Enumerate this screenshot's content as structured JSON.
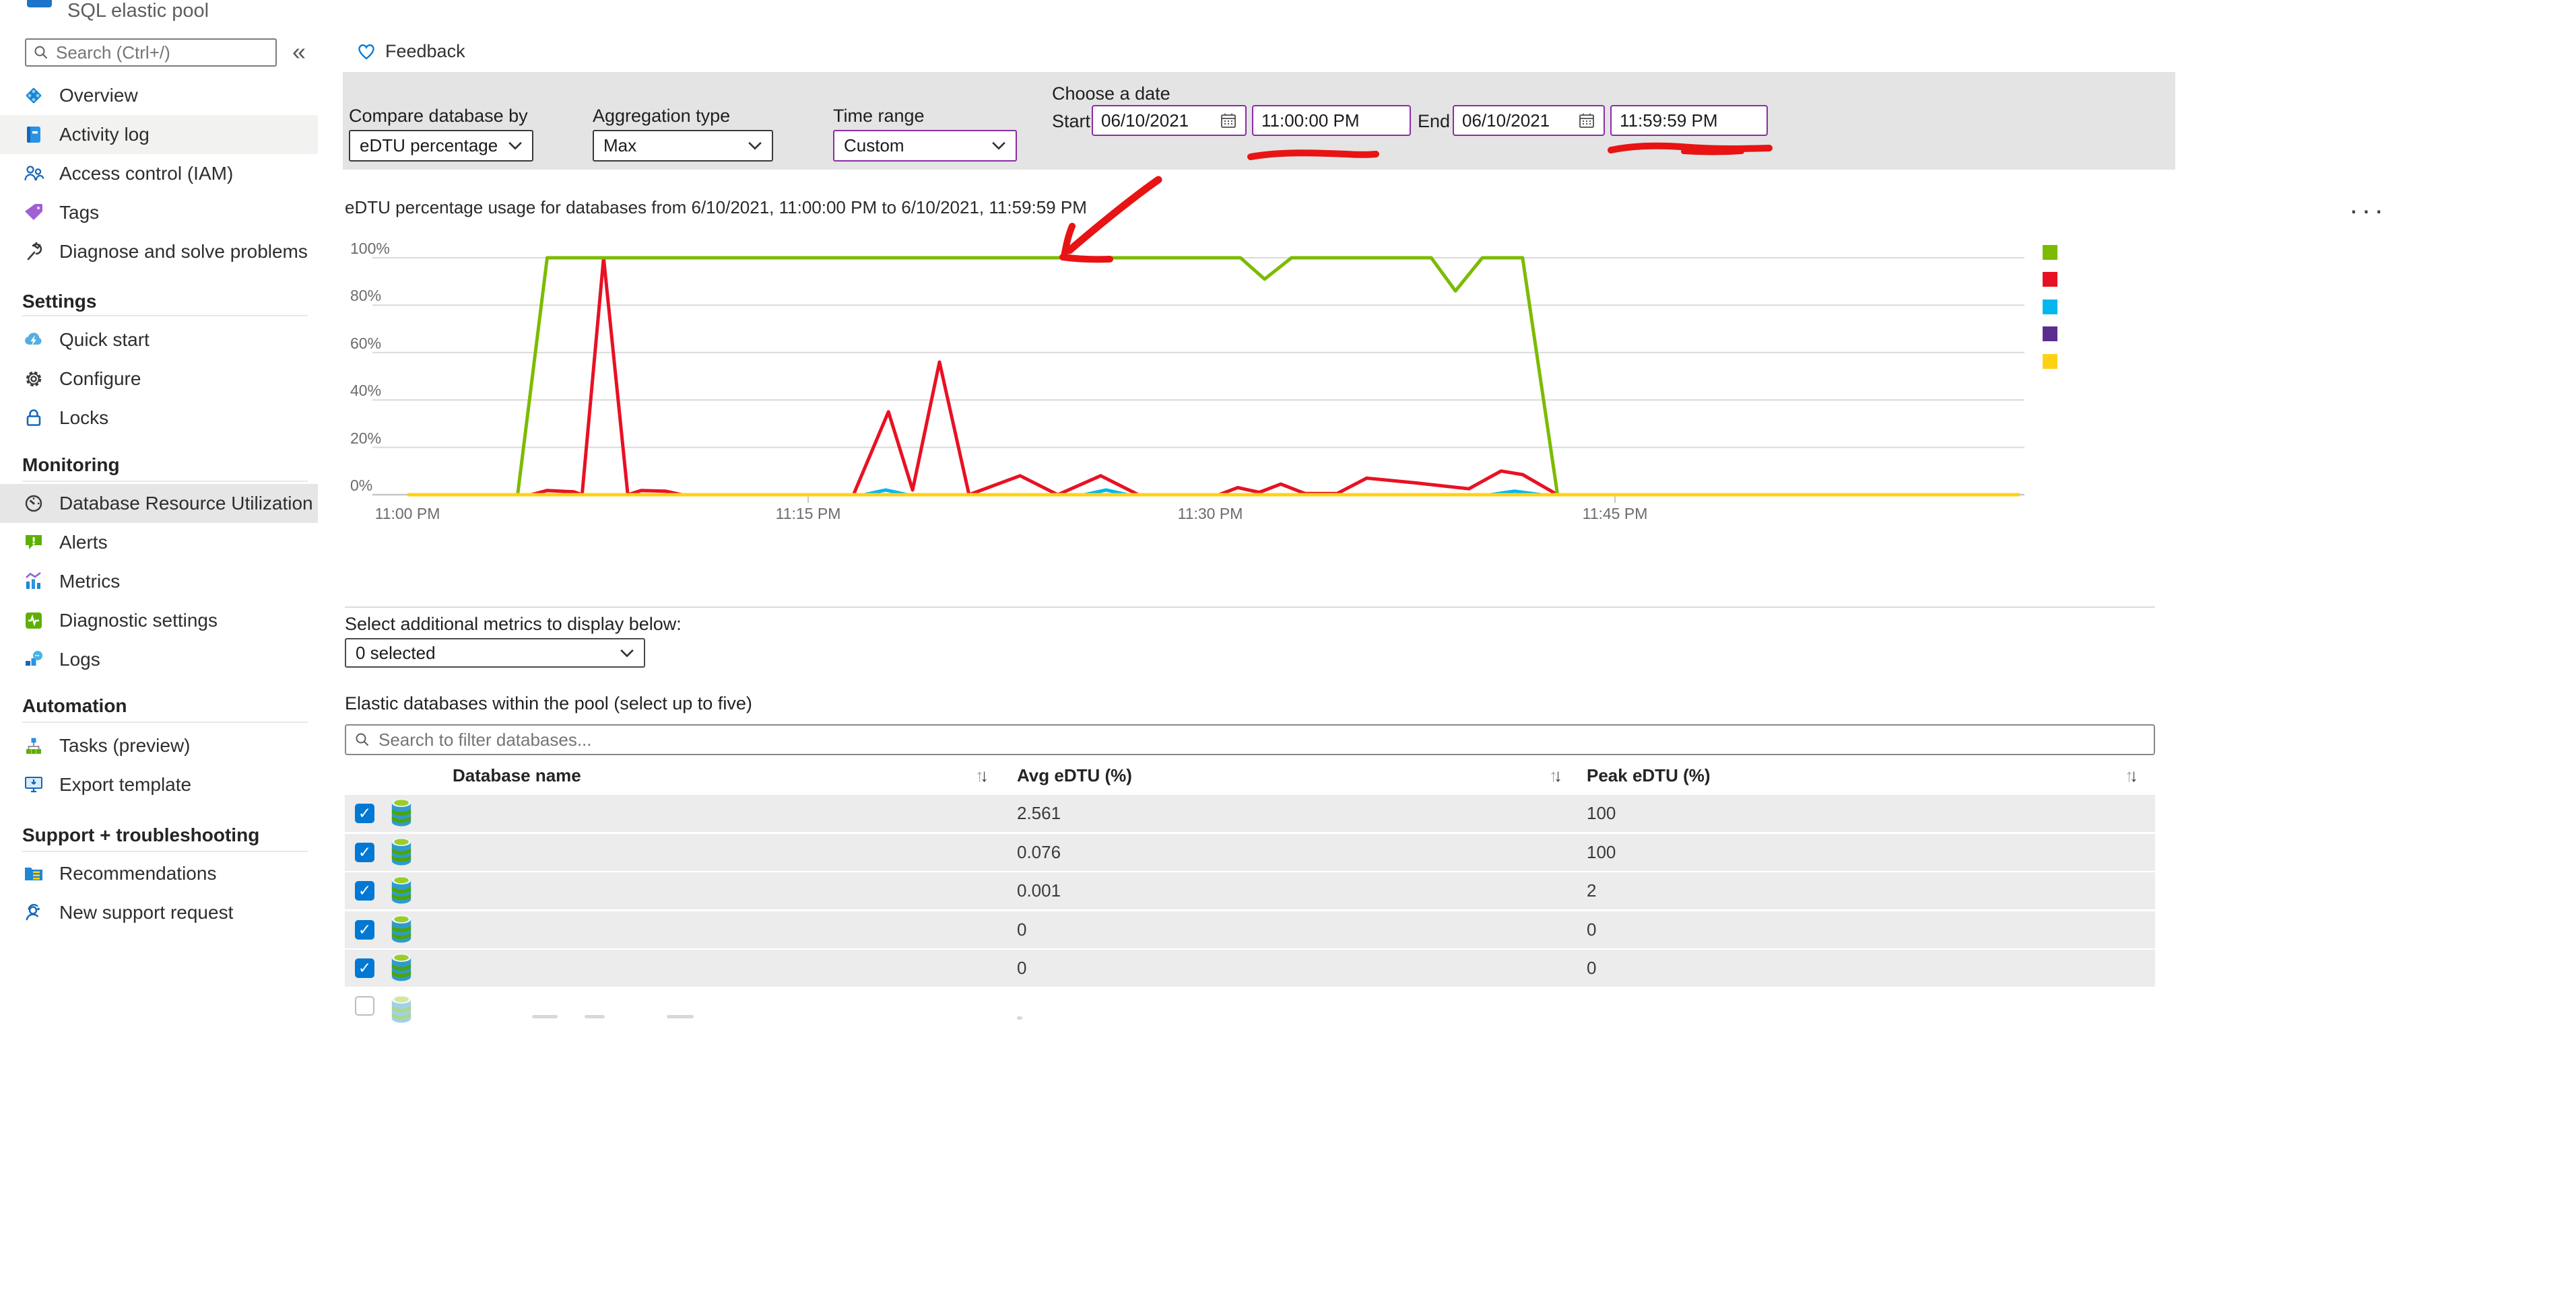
{
  "sidebar": {
    "resource_type": "SQL elastic pool",
    "search": {
      "placeholder": "Search (Ctrl+/)"
    },
    "collapse_glyph": "«",
    "nav": {
      "general": [
        "Overview",
        "Activity log",
        "Access control (IAM)",
        "Tags",
        "Diagnose and solve problems"
      ],
      "settings_header": "Settings",
      "settings": [
        "Quick start",
        "Configure",
        "Locks"
      ],
      "monitoring_header": "Monitoring",
      "monitoring": [
        "Database Resource Utilization",
        "Alerts",
        "Metrics",
        "Diagnostic settings",
        "Logs"
      ],
      "automation_header": "Automation",
      "automation": [
        "Tasks (preview)",
        "Export template"
      ],
      "support_header": "Support + troubleshooting",
      "support": [
        "Recommendations",
        "New support request"
      ],
      "selected_item": "Database Resource Utilization"
    }
  },
  "toolbar": {
    "feedback_label": "Feedback",
    "compare_label": "Compare database by",
    "compare_value": "eDTU percentage",
    "aggregation_label": "Aggregation type",
    "aggregation_value": "Max",
    "time_range_label": "Time range",
    "time_range_value": "Custom",
    "choose_date_label": "Choose a date",
    "start_label": "Start",
    "start_date": "06/10/2021",
    "start_time": "11:00:00 PM",
    "end_label": "End",
    "end_date": "06/10/2021",
    "end_time": "11:59:59 PM",
    "more_glyph": "...",
    "accent_border_color": "#8A2DA5",
    "background_color": "#e4e4e4"
  },
  "chart_data": {
    "type": "line",
    "title": "eDTU percentage usage for databases from 6/10/2021, 11:00:00 PM to 6/10/2021, 11:59:59 PM",
    "xlabel": "",
    "ylabel": "",
    "x_unit": "minutes after 11:00 PM",
    "x_range": [
      0,
      60
    ],
    "ylim": [
      0,
      100
    ],
    "grid": true,
    "legend_position": "right",
    "y_tick_labels": [
      "100%",
      "80%",
      "60%",
      "40%",
      "20%",
      "0%"
    ],
    "x_tick_labels": [
      "11:00 PM",
      "11:15 PM",
      "11:30 PM",
      "11:45 PM"
    ],
    "legend_colors": [
      "#7CBB00",
      "#E81123",
      "#00B7F0",
      "#5C2D91",
      "#FFD115"
    ],
    "series": [
      {
        "id": "purple",
        "color": "#5C2D91",
        "points": [
          [
            0,
            0
          ],
          [
            60,
            0
          ]
        ]
      },
      {
        "id": "cyan",
        "color": "#00B7F0",
        "points": [
          [
            0,
            0
          ],
          [
            17,
            0
          ],
          [
            17.8,
            2
          ],
          [
            18.6,
            0
          ],
          [
            25.2,
            0
          ],
          [
            26,
            2
          ],
          [
            26.8,
            0
          ],
          [
            40.3,
            0
          ],
          [
            41.2,
            1.5
          ],
          [
            42.2,
            0
          ],
          [
            60,
            0
          ]
        ]
      },
      {
        "id": "red",
        "color": "#E81123",
        "points": [
          [
            0,
            0
          ],
          [
            4.6,
            0
          ],
          [
            5.2,
            1.8
          ],
          [
            6.2,
            1.2
          ],
          [
            6.5,
            0
          ],
          [
            7.3,
            100
          ],
          [
            8.2,
            0
          ],
          [
            8.7,
            1.8
          ],
          [
            9.6,
            1.5
          ],
          [
            10.2,
            0
          ],
          [
            16.6,
            0
          ],
          [
            17.9,
            35
          ],
          [
            18.8,
            2
          ],
          [
            19.8,
            56
          ],
          [
            20.9,
            0
          ],
          [
            22.8,
            8
          ],
          [
            24.2,
            0
          ],
          [
            25.8,
            8
          ],
          [
            27.2,
            0
          ],
          [
            30.2,
            0
          ],
          [
            30.9,
            3
          ],
          [
            31.7,
            1
          ],
          [
            32.5,
            4.5
          ],
          [
            33.4,
            0.5
          ],
          [
            34.6,
            0.5
          ],
          [
            35.7,
            7
          ],
          [
            37.5,
            5
          ],
          [
            39.5,
            2.5
          ],
          [
            40.7,
            10
          ],
          [
            41.5,
            8.5
          ],
          [
            42.8,
            0
          ],
          [
            60,
            0
          ]
        ]
      },
      {
        "id": "green",
        "color": "#7CBB00",
        "points": [
          [
            0,
            0
          ],
          [
            4.1,
            0
          ],
          [
            5.2,
            100
          ],
          [
            31,
            100
          ],
          [
            31.9,
            91
          ],
          [
            32.9,
            100
          ],
          [
            38.1,
            100
          ],
          [
            39,
            86
          ],
          [
            40,
            100
          ],
          [
            41.5,
            100
          ],
          [
            42.8,
            0
          ],
          [
            60,
            0
          ]
        ]
      },
      {
        "id": "yellow",
        "color": "#FFD115",
        "points": [
          [
            0,
            0
          ],
          [
            60,
            0
          ]
        ]
      }
    ]
  },
  "metrics": {
    "select_label": "Select additional metrics to display below:",
    "select_value": "0 selected"
  },
  "databases": {
    "section_label": "Elastic databases within the pool (select up to five)",
    "filter_placeholder": "Search to filter databases...",
    "columns": [
      "Database name",
      "Avg eDTU (%)",
      "Peak eDTU (%)"
    ],
    "rows": [
      {
        "checked": true,
        "name": "",
        "avg": "2.561",
        "peak": "100"
      },
      {
        "checked": true,
        "name": "",
        "avg": "0.076",
        "peak": "100"
      },
      {
        "checked": true,
        "name": "",
        "avg": "0.001",
        "peak": "2"
      },
      {
        "checked": true,
        "name": "",
        "avg": "0",
        "peak": "0"
      },
      {
        "checked": true,
        "name": "",
        "avg": "0",
        "peak": "0"
      }
    ],
    "partial_row": {
      "checked": false,
      "name": "",
      "avg": "",
      "peak": ""
    }
  },
  "annotations": {
    "color": "#E81414",
    "items": [
      "arrow-pointing-at-100-percent-line",
      "underline-under-start-time",
      "underline-under-end-time"
    ]
  },
  "ui": {
    "check_glyph": "✓",
    "sort_asc_glyph": "↑",
    "sort_desc_glyph": "↓",
    "checkbox_color": "#0078d4"
  }
}
